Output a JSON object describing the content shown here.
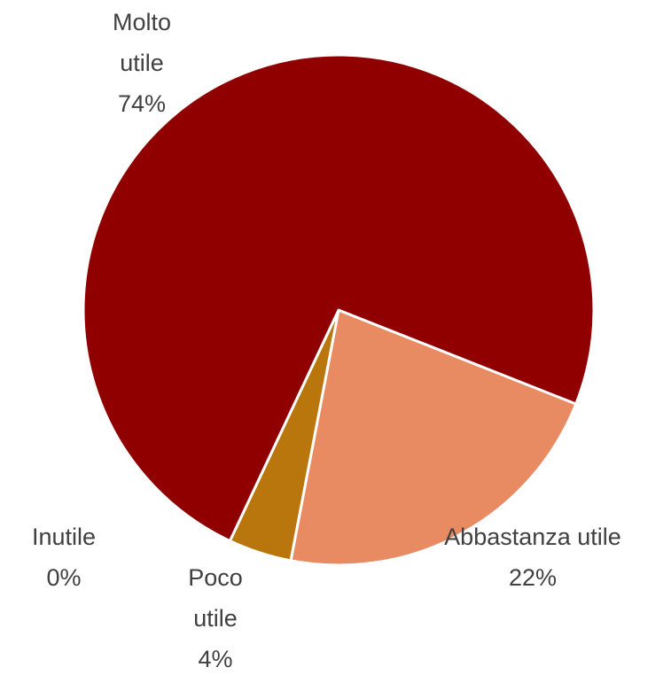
{
  "chart_data": {
    "type": "pie",
    "categories": [
      "Abbastanza utile",
      "Poco utile",
      "Inutile",
      "Molto utile"
    ],
    "values": [
      22,
      4,
      0,
      74
    ],
    "value_labels": [
      "22%",
      "4%",
      "0%",
      "74%"
    ],
    "colors": [
      "#e98b62",
      "#b8760d",
      "#d9a441",
      "#900000"
    ]
  }
}
